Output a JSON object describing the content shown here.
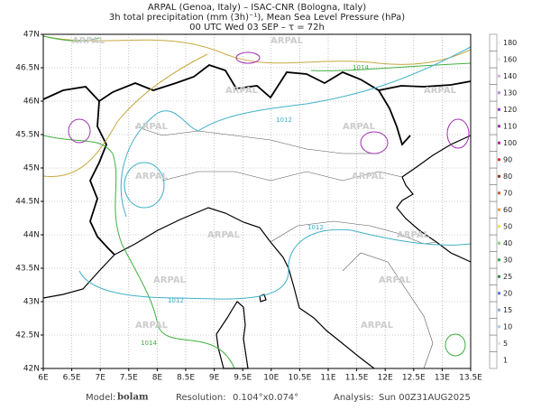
{
  "header": {
    "line1": "ARPAL (Genoa, Italy)  –  ISAC-CNR (Bologna, Italy)",
    "line2": "3h total precipitation (mm (3h)⁻¹), Mean Sea Level Pressure (hPa)",
    "line3": "00 UTC Wed 03 SEP  –  τ = 72h"
  },
  "map": {
    "lon_labels": [
      "6E",
      "6.5E",
      "7E",
      "7.5E",
      "8E",
      "8.5E",
      "9E",
      "9.5E",
      "10E",
      "10.5E",
      "11E",
      "11.5E",
      "12E",
      "12.5E",
      "13E",
      "13.5E"
    ],
    "lat_labels": [
      "42N",
      "42.5N",
      "43N",
      "43.5N",
      "44N",
      "44.5N",
      "45N",
      "45.5N",
      "46N",
      "46.5N",
      "47N"
    ],
    "watermark": "ARPAL",
    "contour_labels": [
      "1014",
      "1012",
      "1012",
      "1012",
      "1014"
    ]
  },
  "colorbar": {
    "levels": [
      1,
      5,
      10,
      15,
      20,
      25,
      30,
      40,
      50,
      60,
      70,
      80,
      90,
      100,
      110,
      120,
      130,
      140,
      160,
      180
    ],
    "colors": [
      "#ffffff",
      "#d8e4f4",
      "#b4c8ec",
      "#8fa8e0",
      "#5a78d0",
      "#2e8b3a",
      "#3aa84a",
      "#8cd470",
      "#f0e040",
      "#f0a030",
      "#c86428",
      "#a03020",
      "#e03030",
      "#c020a0",
      "#a030b0",
      "#9040c0",
      "#b890e0",
      "#e0b0e0",
      "#e8e8e8",
      "#f4f4f4"
    ]
  },
  "footer": {
    "model_label": "Model:",
    "model": "bolam",
    "resolution_label": "Resolution:",
    "resolution": "0.104°x0.074°",
    "analysis_label": "Analysis:",
    "analysis": "Sun 00Z31AUG2025"
  }
}
